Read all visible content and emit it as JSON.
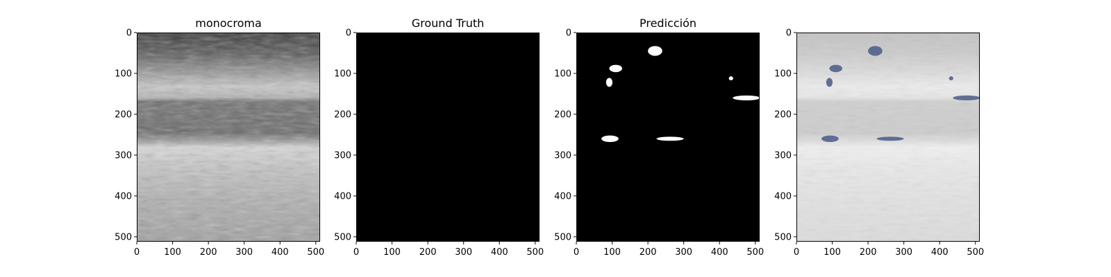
{
  "figure": {
    "panels": [
      {
        "title": "monocroma",
        "kind": "ultrasound"
      },
      {
        "title": "Ground Truth",
        "kind": "mask-empty"
      },
      {
        "title": "Predicción",
        "kind": "mask-pred"
      },
      {
        "title": "",
        "kind": "overlay"
      }
    ],
    "x_ticks": [
      "0",
      "100",
      "200",
      "300",
      "400",
      "500"
    ],
    "y_ticks": [
      "0",
      "100",
      "200",
      "300",
      "400",
      "500"
    ],
    "tick_values": [
      0,
      100,
      200,
      300,
      400,
      500
    ],
    "image_extent": 512,
    "overlay_color": "#4a5a86",
    "blobs": [
      {
        "cx": 220,
        "cy": 45,
        "rx": 20,
        "ry": 12
      },
      {
        "cx": 110,
        "cy": 88,
        "rx": 18,
        "ry": 9
      },
      {
        "cx": 92,
        "cy": 122,
        "rx": 9,
        "ry": 11
      },
      {
        "cx": 432,
        "cy": 112,
        "rx": 6,
        "ry": 5
      },
      {
        "cx": 475,
        "cy": 160,
        "rx": 38,
        "ry": 6
      },
      {
        "cx": 94,
        "cy": 260,
        "rx": 24,
        "ry": 8
      },
      {
        "cx": 262,
        "cy": 260,
        "rx": 38,
        "ry": 5
      }
    ]
  }
}
